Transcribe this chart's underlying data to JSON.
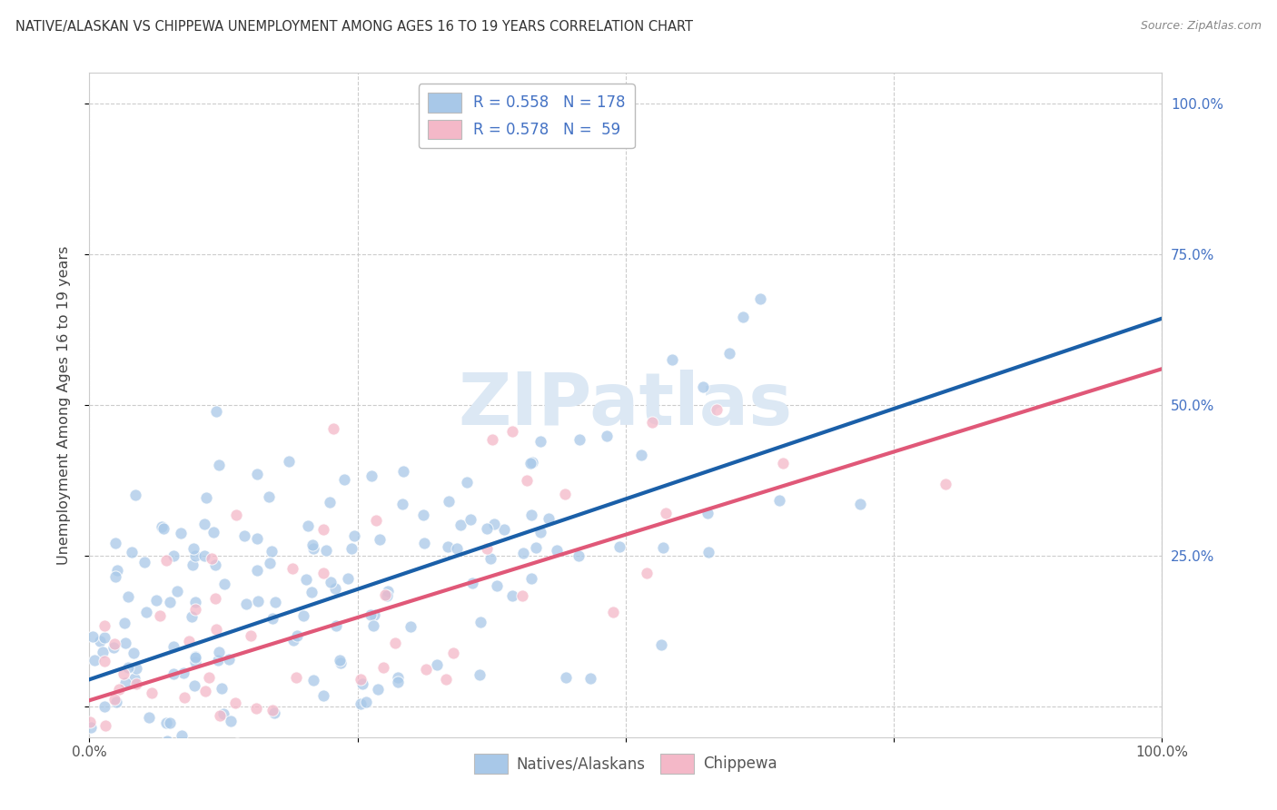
{
  "title": "NATIVE/ALASKAN VS CHIPPEWA UNEMPLOYMENT AMONG AGES 16 TO 19 YEARS CORRELATION CHART",
  "source": "Source: ZipAtlas.com",
  "ylabel": "Unemployment Among Ages 16 to 19 years",
  "blue_color": "#a8c8e8",
  "pink_color": "#f4b8c8",
  "blue_line_color": "#1a5fa8",
  "pink_line_color": "#e05878",
  "watermark_color": "#dce8f4",
  "background_color": "#ffffff",
  "grid_color": "#cccccc",
  "right_tick_color": "#4472c4",
  "legend_text_color": "#4472c4",
  "title_color": "#333333",
  "source_color": "#888888",
  "ylabel_color": "#444444"
}
